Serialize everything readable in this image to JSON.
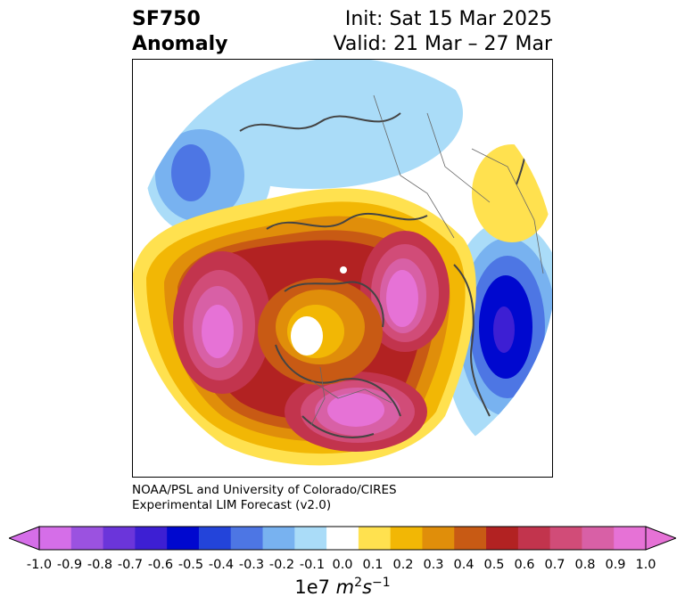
{
  "header": {
    "title_line1": "SF750",
    "title_line2": "Anomaly",
    "init_text": "Init: Sat 15 Mar 2025",
    "valid_text": "Valid: 21 Mar – 27 Mar"
  },
  "credit": {
    "line1": "NOAA/PSL and University of Colorado/CIRES",
    "line2": "Experimental LIM Forecast (v2.0)"
  },
  "colorbar": {
    "colors": [
      "#d56ee8",
      "#9b52e0",
      "#6b35da",
      "#3d1fd3",
      "#0008cf",
      "#2344da",
      "#4d76e4",
      "#78b2f0",
      "#aadcf8",
      "#ffffff",
      "#ffe14f",
      "#f2b705",
      "#e08e0a",
      "#c85a14",
      "#b22222",
      "#c2344d",
      "#d14c78",
      "#d860a6",
      "#e672d6"
    ],
    "ticks": [
      "-1.0",
      "-0.9",
      "-0.8",
      "-0.7",
      "-0.6",
      "-0.5",
      "-0.4",
      "-0.3",
      "-0.2",
      "-0.1",
      "0.0",
      "0.1",
      "0.2",
      "0.3",
      "0.4",
      "0.5",
      "0.6",
      "0.7",
      "0.8",
      "0.9",
      "1.0"
    ],
    "units_prefix": "1e7",
    "units_var": "m",
    "units_exp1": "2",
    "units_var2": "s",
    "units_exp2": "−1"
  },
  "map": {
    "projection": "polar stereographic (north)",
    "field": "streamfunction anomaly at 750 hPa",
    "features": [
      "positive anomaly over North America",
      "positive anomaly over Eastern Siberia",
      "positive anomaly over North Pacific",
      "negative anomaly over Europe",
      "negative anomaly over Central Asia"
    ]
  }
}
